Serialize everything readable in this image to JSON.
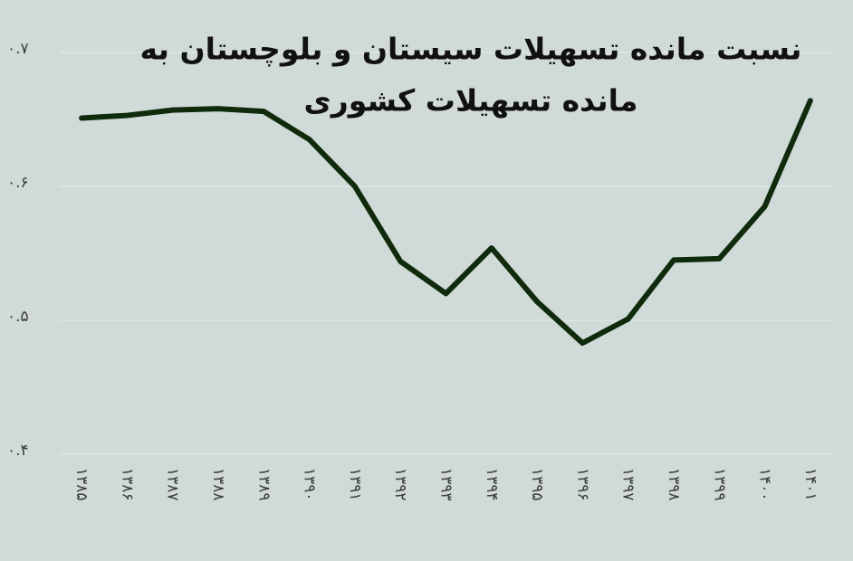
{
  "chart_data": {
    "type": "line",
    "title": [
      "نسبت مانده تسهیلات سیستان و بلوچستان به",
      "مانده تسهیلات کشوری"
    ],
    "categories": [
      "۱۳۸۵",
      "۱۳۸۶",
      "۱۳۸۷",
      "۱۳۸۸",
      "۱۳۸۹",
      "۱۳۹۰",
      "۱۳۹۱",
      "۱۳۹۲",
      "۱۳۹۳",
      "۱۳۹۴",
      "۱۳۹۵",
      "۱۳۹۶",
      "۱۳۹۷",
      "۱۳۹۸",
      "۱۳۹۹",
      "۱۴۰۰",
      "۱۴۰۱"
    ],
    "values": [
      0.651,
      0.653,
      0.657,
      0.658,
      0.656,
      0.635,
      0.6,
      0.544,
      0.52,
      0.554,
      0.514,
      0.483,
      0.501,
      0.545,
      0.546,
      0.585,
      0.664
    ],
    "color": "#0f2b0c",
    "ylim": [
      0.4,
      0.7
    ],
    "yticks": [
      {
        "value": 0.4,
        "label": "۰.۴"
      },
      {
        "value": 0.5,
        "label": "۰.۵"
      },
      {
        "value": 0.6,
        "label": "۰.۶"
      },
      {
        "value": 0.7,
        "label": "۰.۷"
      }
    ],
    "grid": true
  }
}
